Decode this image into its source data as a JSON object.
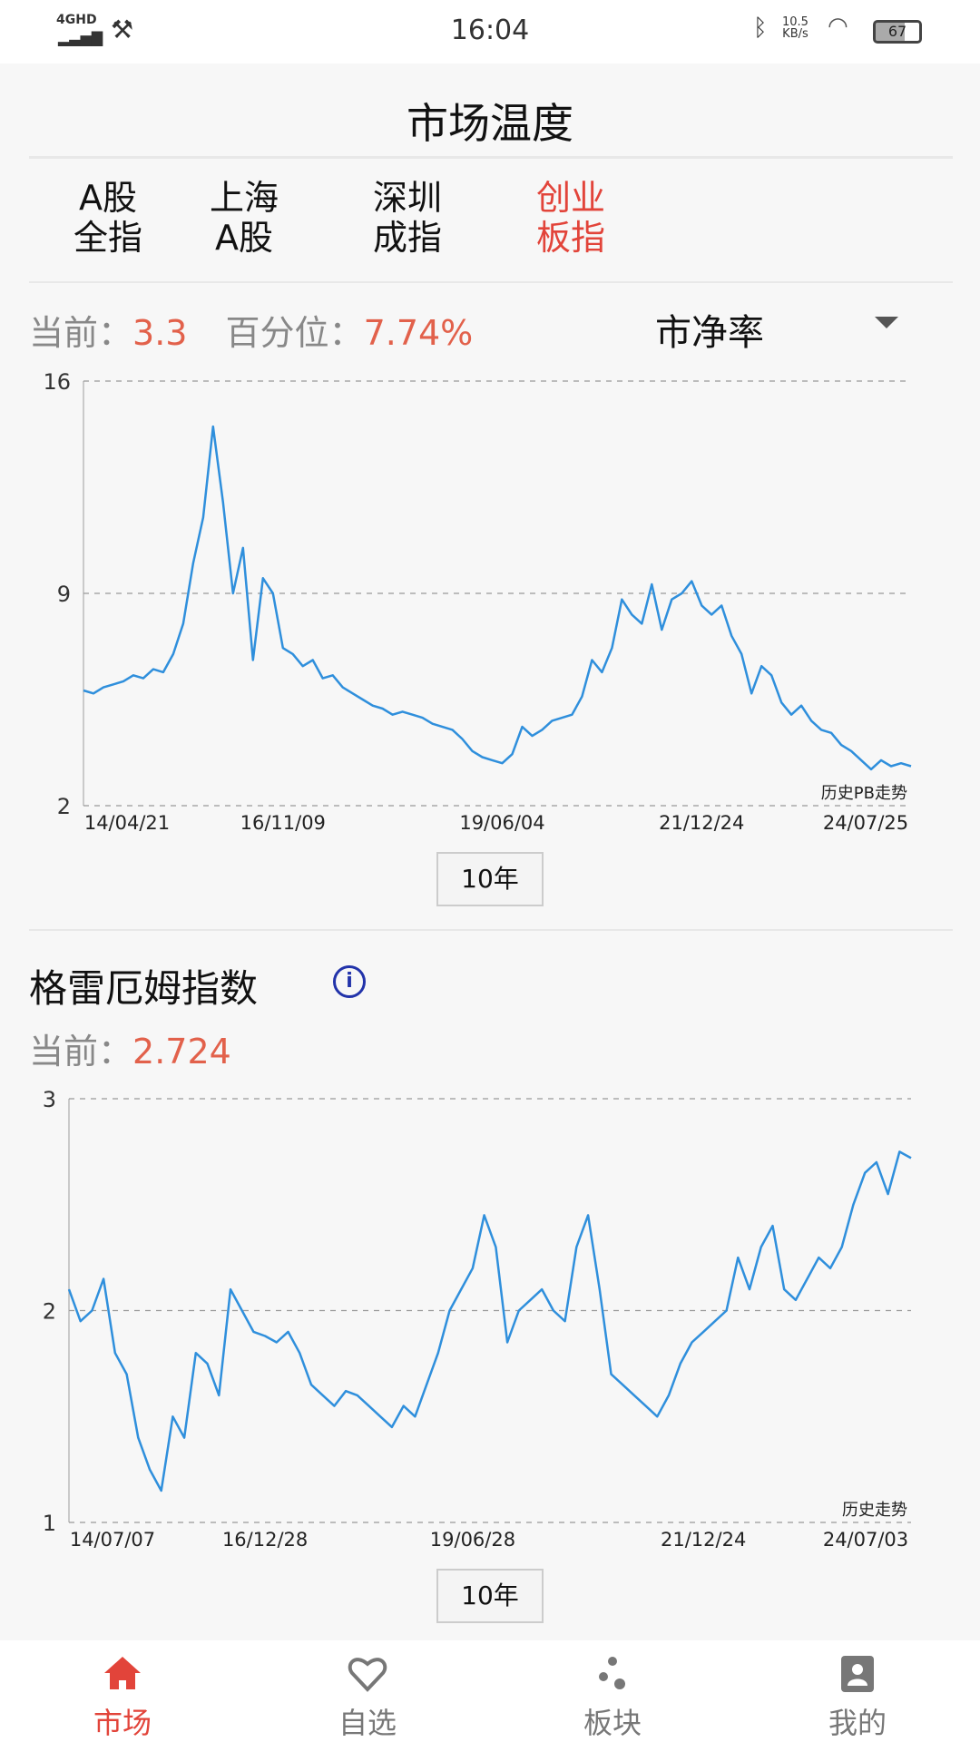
{
  "status": {
    "network": "4GHD",
    "time": "16:04",
    "speed": "10.5",
    "speed_unit": "KB/s",
    "battery": "67"
  },
  "header": {
    "title": "市场温度"
  },
  "tabs": [
    {
      "line1": "A股",
      "line2": "全指"
    },
    {
      "line1": "上海",
      "line2": "A股"
    },
    {
      "line1": "深圳",
      "line2": "成指"
    },
    {
      "line1": "创业",
      "line2": "板指"
    }
  ],
  "active_tab": 3,
  "pb": {
    "current_label": "当前：",
    "current": "3.3",
    "pct_label": "百分位：",
    "pct": "7.74%",
    "metric": "市净率",
    "period": "10年"
  },
  "graham": {
    "title": "格雷厄姆指数",
    "info_icon": "i",
    "current_label": "当前：",
    "current": "2.724",
    "period": "10年"
  },
  "nav": [
    {
      "label": "市场",
      "icon": "home-icon"
    },
    {
      "label": "自选",
      "icon": "heart-icon"
    },
    {
      "label": "板块",
      "icon": "dots-icon"
    },
    {
      "label": "我的",
      "icon": "badge-icon"
    }
  ],
  "colors": {
    "accent": "#e2443a",
    "line": "#2f8fdc"
  },
  "chart_data": [
    {
      "type": "line",
      "title": "",
      "annotation": "历史PB走势",
      "ylim": [
        2,
        16
      ],
      "yticks": [
        "16",
        "9",
        "2"
      ],
      "ytick_values": [
        16,
        9,
        2
      ],
      "xticks": [
        {
          "label": "14/04/21",
          "at": 0
        },
        {
          "label": "16/11/09",
          "at": 20
        },
        {
          "label": "19/06/04",
          "at": 42
        },
        {
          "label": "21/12/24",
          "at": 62
        },
        {
          "label": "24/07/25",
          "at": 81
        }
      ],
      "values": [
        5.8,
        5.7,
        5.9,
        6.0,
        6.1,
        6.3,
        6.2,
        6.5,
        6.4,
        7.0,
        8.0,
        10.0,
        11.5,
        14.5,
        12.0,
        9.0,
        10.5,
        6.8,
        9.5,
        9.0,
        7.2,
        7.0,
        6.6,
        6.8,
        6.2,
        6.3,
        5.9,
        5.7,
        5.5,
        5.3,
        5.2,
        5.0,
        5.1,
        5.0,
        4.9,
        4.7,
        4.6,
        4.5,
        4.2,
        3.8,
        3.6,
        3.5,
        3.4,
        3.7,
        4.6,
        4.3,
        4.5,
        4.8,
        4.9,
        5.0,
        5.6,
        6.8,
        6.4,
        7.2,
        8.8,
        8.3,
        8.0,
        9.3,
        7.8,
        8.8,
        9.0,
        9.4,
        8.6,
        8.3,
        8.6,
        7.6,
        7.0,
        5.7,
        6.6,
        6.3,
        5.4,
        5.0,
        5.3,
        4.8,
        4.5,
        4.4,
        4.0,
        3.8,
        3.5,
        3.2,
        3.5,
        3.3,
        3.4,
        3.3
      ]
    },
    {
      "type": "line",
      "title": "",
      "annotation": "历史走势",
      "ylim": [
        1,
        3
      ],
      "yticks": [
        "3",
        "2",
        "1"
      ],
      "ytick_values": [
        3,
        2,
        1
      ],
      "xticks": [
        {
          "label": "14/07/07",
          "at": 0
        },
        {
          "label": "16/12/28",
          "at": 17
        },
        {
          "label": "19/06/28",
          "at": 35
        },
        {
          "label": "21/12/24",
          "at": 55
        },
        {
          "label": "24/07/03",
          "at": 70
        }
      ],
      "values": [
        2.1,
        1.95,
        2.0,
        2.15,
        1.8,
        1.7,
        1.4,
        1.25,
        1.15,
        1.5,
        1.4,
        1.8,
        1.75,
        1.6,
        2.1,
        2.0,
        1.9,
        1.88,
        1.85,
        1.9,
        1.8,
        1.65,
        1.6,
        1.55,
        1.62,
        1.6,
        1.55,
        1.5,
        1.45,
        1.55,
        1.5,
        1.65,
        1.8,
        2.0,
        2.1,
        2.2,
        2.45,
        2.3,
        1.85,
        2.0,
        2.05,
        2.1,
        2.0,
        1.95,
        2.3,
        2.45,
        2.1,
        1.7,
        1.65,
        1.6,
        1.55,
        1.5,
        1.6,
        1.75,
        1.85,
        1.9,
        1.95,
        2.0,
        2.25,
        2.1,
        2.3,
        2.4,
        2.1,
        2.05,
        2.15,
        2.25,
        2.2,
        2.3,
        2.5,
        2.65,
        2.7,
        2.55,
        2.75,
        2.72
      ]
    }
  ]
}
